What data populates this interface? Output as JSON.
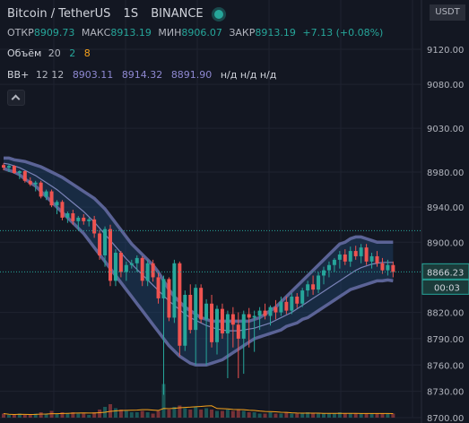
{
  "header": {
    "title": "Bitcoin / TetherUS",
    "interval": "1S",
    "exchange": "BINANCE",
    "open_label": "ОТКР",
    "open": "8909.73",
    "high_label": "МАКС",
    "high": "8913.19",
    "low_label": "МИН",
    "low": "8906.07",
    "close_label": "ЗАКР",
    "close": "8913.19",
    "change": "+7.13 (+0.08%)"
  },
  "volume_legend": {
    "label": "Объём",
    "period": "20",
    "value_up": "2",
    "value_ma": "8"
  },
  "bb_legend": {
    "label": "BB+",
    "params": "12 12",
    "v1": "8903.11",
    "v2": "8914.32",
    "v3": "8891.90",
    "na": "н/д н/д н/д"
  },
  "currency_button": "USDT",
  "price_axis": {
    "ticks": [
      "9120.00",
      "9080.00",
      "9030.00",
      "8980.00",
      "8940.00",
      "8900.00",
      "8866.23",
      "8820.00",
      "8790.00",
      "8760.00",
      "8730.00",
      "8700.00"
    ]
  },
  "last_price": "8866.23",
  "countdown": "00:03",
  "colors": {
    "up": "#26a69a",
    "down": "#ef5350",
    "band": "#5b6396",
    "basis": "#7b83b8",
    "bg": "#131722",
    "price_line": "#26a69a"
  },
  "chart_data": {
    "type": "candlestick",
    "ylim": [
      8700,
      9140
    ],
    "y_ticks": [
      9120,
      9080,
      9030,
      8980,
      8940,
      8900,
      8820,
      8790,
      8760,
      8730,
      8700
    ],
    "last_price": 8866.23,
    "candles": [
      [
        8988,
        8990,
        8982,
        8985
      ],
      [
        8985,
        8989,
        8980,
        8987
      ],
      [
        8987,
        8988,
        8978,
        8979
      ],
      [
        8979,
        8982,
        8972,
        8981
      ],
      [
        8981,
        8982,
        8968,
        8970
      ],
      [
        8970,
        8974,
        8964,
        8966
      ],
      [
        8966,
        8970,
        8958,
        8968
      ],
      [
        8968,
        8970,
        8950,
        8952
      ],
      [
        8952,
        8960,
        8948,
        8958
      ],
      [
        8958,
        8960,
        8940,
        8942
      ],
      [
        8942,
        8948,
        8932,
        8946
      ],
      [
        8946,
        8948,
        8925,
        8928
      ],
      [
        8928,
        8935,
        8922,
        8933
      ],
      [
        8933,
        8937,
        8920,
        8924
      ],
      [
        8924,
        8930,
        8914,
        8928
      ],
      [
        8928,
        8932,
        8920,
        8924
      ],
      [
        8924,
        8928,
        8918,
        8926
      ],
      [
        8926,
        8930,
        8905,
        8910
      ],
      [
        8910,
        8914,
        8880,
        8885
      ],
      [
        8885,
        8918,
        8872,
        8915
      ],
      [
        8915,
        8920,
        8850,
        8856
      ],
      [
        8856,
        8892,
        8850,
        8888
      ],
      [
        8888,
        8890,
        8860,
        8866
      ],
      [
        8866,
        8878,
        8856,
        8874
      ],
      [
        8874,
        8880,
        8870,
        8876
      ],
      [
        8876,
        8885,
        8866,
        8882
      ],
      [
        8882,
        8884,
        8850,
        8856
      ],
      [
        8856,
        8880,
        8850,
        8876
      ],
      [
        8876,
        8880,
        8855,
        8860
      ],
      [
        8860,
        8865,
        8830,
        8836
      ],
      [
        8836,
        8862,
        8726,
        8858
      ],
      [
        8858,
        8860,
        8810,
        8814
      ],
      [
        8814,
        8880,
        8808,
        8876
      ],
      [
        8876,
        8878,
        8770,
        8782
      ],
      [
        8782,
        8845,
        8776,
        8840
      ],
      [
        8840,
        8852,
        8796,
        8800
      ],
      [
        8800,
        8852,
        8760,
        8848
      ],
      [
        8848,
        8852,
        8808,
        8812
      ],
      [
        8812,
        8835,
        8760,
        8830
      ],
      [
        8830,
        8840,
        8780,
        8786
      ],
      [
        8786,
        8828,
        8772,
        8824
      ],
      [
        8824,
        8830,
        8790,
        8796
      ],
      [
        8796,
        8822,
        8745,
        8818
      ],
      [
        8818,
        8826,
        8780,
        8806
      ],
      [
        8806,
        8820,
        8745,
        8790
      ],
      [
        8790,
        8822,
        8750,
        8818
      ],
      [
        8818,
        8825,
        8780,
        8814
      ],
      [
        8814,
        8822,
        8775,
        8816
      ],
      [
        8816,
        8826,
        8800,
        8822
      ],
      [
        8822,
        8830,
        8812,
        8816
      ],
      [
        8816,
        8828,
        8805,
        8826
      ],
      [
        8826,
        8834,
        8812,
        8820
      ],
      [
        8820,
        8838,
        8816,
        8832
      ],
      [
        8832,
        8838,
        8818,
        8822
      ],
      [
        8822,
        8842,
        8818,
        8838
      ],
      [
        8838,
        8842,
        8825,
        8830
      ],
      [
        8830,
        8848,
        8826,
        8845
      ],
      [
        8845,
        8856,
        8838,
        8852
      ],
      [
        8852,
        8862,
        8840,
        8846
      ],
      [
        8846,
        8866,
        8842,
        8862
      ],
      [
        8862,
        8872,
        8852,
        8868
      ],
      [
        8868,
        8878,
        8860,
        8874
      ],
      [
        8874,
        8882,
        8866,
        8880
      ],
      [
        8880,
        8890,
        8870,
        8886
      ],
      [
        8886,
        8892,
        8874,
        8878
      ],
      [
        8878,
        8895,
        8872,
        8890
      ],
      [
        8890,
        8896,
        8880,
        8884
      ],
      [
        8884,
        8898,
        8876,
        8894
      ],
      [
        8894,
        8898,
        8874,
        8878
      ],
      [
        8878,
        8888,
        8870,
        8884
      ],
      [
        8884,
        8890,
        8872,
        8876
      ],
      [
        8876,
        8882,
        8864,
        8868
      ],
      [
        8868,
        8880,
        8862,
        8874
      ],
      [
        8874,
        8878,
        8860,
        8866
      ]
    ],
    "bb_upper": [
      8996,
      8996,
      8994,
      8993,
      8992,
      8990,
      8988,
      8986,
      8983,
      8980,
      8977,
      8974,
      8970,
      8966,
      8962,
      8958,
      8954,
      8950,
      8944,
      8938,
      8930,
      8922,
      8914,
      8906,
      8898,
      8892,
      8886,
      8880,
      8874,
      8866,
      8856,
      8846,
      8838,
      8832,
      8826,
      8822,
      8818,
      8814,
      8812,
      8810,
      8810,
      8810,
      8810,
      8810,
      8810,
      8810,
      8810,
      8812,
      8814,
      8818,
      8822,
      8826,
      8832,
      8838,
      8844,
      8850,
      8856,
      8862,
      8868,
      8874,
      8880,
      8886,
      8892,
      8898,
      8900,
      8904,
      8906,
      8906,
      8904,
      8902,
      8900,
      8900,
      8900,
      8900
    ],
    "bb_basis": [
      8990,
      8989,
      8987,
      8985,
      8982,
      8979,
      8976,
      8972,
      8968,
      8964,
      8960,
      8955,
      8950,
      8945,
      8940,
      8935,
      8929,
      8923,
      8916,
      8909,
      8902,
      8895,
      8888,
      8881,
      8875,
      8869,
      8863,
      8857,
      8851,
      8845,
      8839,
      8833,
      8828,
      8823,
      8818,
      8814,
      8811,
      8808,
      8805,
      8803,
      8801,
      8800,
      8799,
      8799,
      8799,
      8800,
      8801,
      8802,
      8804,
      8806,
      8808,
      8811,
      8814,
      8817,
      8820,
      8824,
      8828,
      8832,
      8836,
      8840,
      8844,
      8848,
      8852,
      8856,
      8860,
      8864,
      8868,
      8871,
      8873,
      8875,
      8876,
      8877,
      8877,
      8877
    ],
    "bb_lower": [
      8984,
      8982,
      8980,
      8977,
      8972,
      8968,
      8964,
      8958,
      8952,
      8946,
      8940,
      8934,
      8928,
      8922,
      8916,
      8910,
      8902,
      8894,
      8886,
      8878,
      8870,
      8862,
      8854,
      8846,
      8838,
      8830,
      8822,
      8814,
      8806,
      8798,
      8790,
      8782,
      8776,
      8770,
      8766,
      8762,
      8760,
      8760,
      8760,
      8762,
      8764,
      8766,
      8770,
      8774,
      8778,
      8782,
      8786,
      8790,
      8792,
      8794,
      8796,
      8798,
      8800,
      8804,
      8806,
      8808,
      8812,
      8814,
      8818,
      8822,
      8826,
      8830,
      8834,
      8838,
      8842,
      8846,
      8848,
      8850,
      8852,
      8854,
      8856,
      8856,
      8857,
      8856
    ],
    "volumes": [
      3,
      2,
      2,
      3,
      2,
      2,
      3,
      4,
      3,
      5,
      3,
      4,
      3,
      4,
      3,
      3,
      2,
      4,
      6,
      8,
      10,
      7,
      6,
      5,
      4,
      4,
      5,
      4,
      3,
      5,
      25,
      6,
      8,
      9,
      7,
      6,
      8,
      6,
      7,
      6,
      5,
      5,
      6,
      5,
      6,
      5,
      4,
      4,
      3,
      3,
      4,
      3,
      3,
      4,
      3,
      3,
      3,
      4,
      3,
      3,
      3,
      3,
      3,
      4,
      3,
      3,
      3,
      3,
      3,
      3,
      3,
      3,
      3,
      3
    ]
  }
}
